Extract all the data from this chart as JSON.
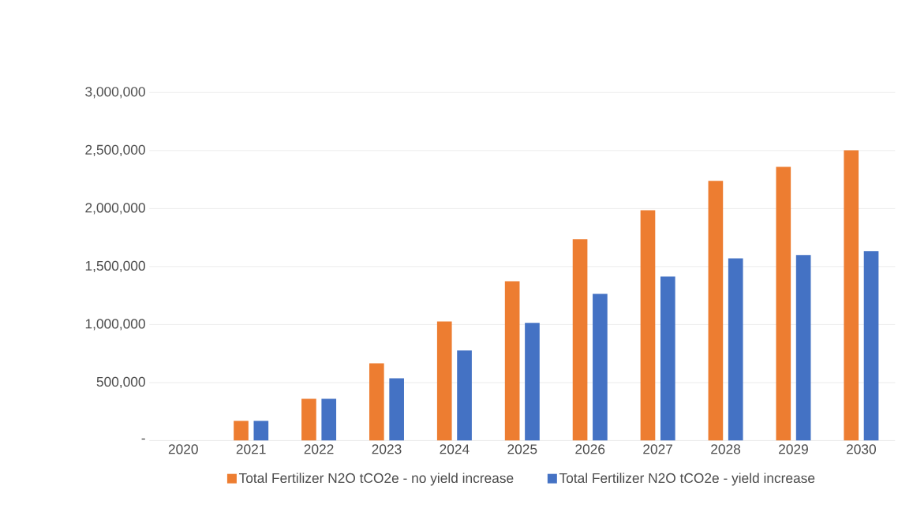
{
  "chart_data": {
    "type": "bar",
    "categories": [
      "2020",
      "2021",
      "2022",
      "2023",
      "2024",
      "2025",
      "2026",
      "2027",
      "2028",
      "2029",
      "2030"
    ],
    "series": [
      {
        "name": "Total Fertilizer N2O tCO2e - no yield increase",
        "color": "#ed7d31",
        "values": [
          0,
          170000,
          360000,
          667000,
          1027000,
          1374000,
          1735000,
          1986000,
          2238000,
          2360000,
          2503000
        ]
      },
      {
        "name": "Total Fertilizer N2O tCO2e - yield increase",
        "color": "#4472c4",
        "values": [
          0,
          170000,
          360000,
          537000,
          776000,
          1014000,
          1265000,
          1415000,
          1571000,
          1599000,
          1633000
        ]
      }
    ],
    "ylim": [
      0,
      3000000
    ],
    "yticks": [
      {
        "value": 0,
        "label": "-"
      },
      {
        "value": 500000,
        "label": "500,000"
      },
      {
        "value": 1000000,
        "label": "1,000,000"
      },
      {
        "value": 1500000,
        "label": "1,500,000"
      },
      {
        "value": 2000000,
        "label": "2,000,000"
      },
      {
        "value": 2500000,
        "label": "2,500,000"
      },
      {
        "value": 3000000,
        "label": "3,000,000"
      }
    ],
    "grid": "y",
    "legend": "bottom"
  }
}
